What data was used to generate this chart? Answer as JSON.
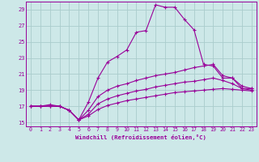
{
  "xlabel": "Windchill (Refroidissement éolien,°C)",
  "bg_color": "#cde8e8",
  "grid_color": "#aacccc",
  "line_color": "#990099",
  "xlim": [
    -0.5,
    23.5
  ],
  "ylim": [
    14.5,
    30.0
  ],
  "yticks": [
    15,
    17,
    19,
    21,
    23,
    25,
    27,
    29
  ],
  "xticks": [
    0,
    1,
    2,
    3,
    4,
    5,
    6,
    7,
    8,
    9,
    10,
    11,
    12,
    13,
    14,
    15,
    16,
    17,
    18,
    19,
    20,
    21,
    22,
    23
  ],
  "curves": [
    {
      "x": [
        0,
        1,
        2,
        3,
        4,
        5,
        6,
        7,
        8,
        9,
        10,
        11,
        12,
        13,
        14,
        15,
        16,
        17,
        18,
        19,
        20,
        21,
        22,
        23
      ],
      "y": [
        17.0,
        17.0,
        17.2,
        17.0,
        16.5,
        15.3,
        17.5,
        20.5,
        22.5,
        23.2,
        24.0,
        26.2,
        26.4,
        29.6,
        29.3,
        29.3,
        27.8,
        26.5,
        22.2,
        22.0,
        20.5,
        20.5,
        19.2,
        19.2
      ]
    },
    {
      "x": [
        0,
        1,
        2,
        3,
        4,
        5,
        6,
        7,
        8,
        9,
        10,
        11,
        12,
        13,
        14,
        15,
        16,
        17,
        18,
        19,
        20,
        21,
        22,
        23
      ],
      "y": [
        17.0,
        17.0,
        17.0,
        17.0,
        16.5,
        15.3,
        16.5,
        18.2,
        19.0,
        19.5,
        19.8,
        20.2,
        20.5,
        20.8,
        21.0,
        21.2,
        21.5,
        21.8,
        22.0,
        22.2,
        20.8,
        20.5,
        19.5,
        19.2
      ]
    },
    {
      "x": [
        0,
        1,
        2,
        3,
        4,
        5,
        6,
        7,
        8,
        9,
        10,
        11,
        12,
        13,
        14,
        15,
        16,
        17,
        18,
        19,
        20,
        21,
        22,
        23
      ],
      "y": [
        17.0,
        17.0,
        17.0,
        17.0,
        16.5,
        15.3,
        16.0,
        17.3,
        17.9,
        18.3,
        18.6,
        18.9,
        19.1,
        19.4,
        19.6,
        19.8,
        20.0,
        20.1,
        20.3,
        20.5,
        20.2,
        19.8,
        19.2,
        19.0
      ]
    },
    {
      "x": [
        0,
        1,
        2,
        3,
        4,
        5,
        6,
        7,
        8,
        9,
        10,
        11,
        12,
        13,
        14,
        15,
        16,
        17,
        18,
        19,
        20,
        21,
        22,
        23
      ],
      "y": [
        17.0,
        17.0,
        17.0,
        17.0,
        16.5,
        15.3,
        15.8,
        16.6,
        17.1,
        17.4,
        17.7,
        17.9,
        18.1,
        18.3,
        18.5,
        18.7,
        18.8,
        18.9,
        19.0,
        19.1,
        19.2,
        19.1,
        19.0,
        18.9
      ]
    }
  ]
}
